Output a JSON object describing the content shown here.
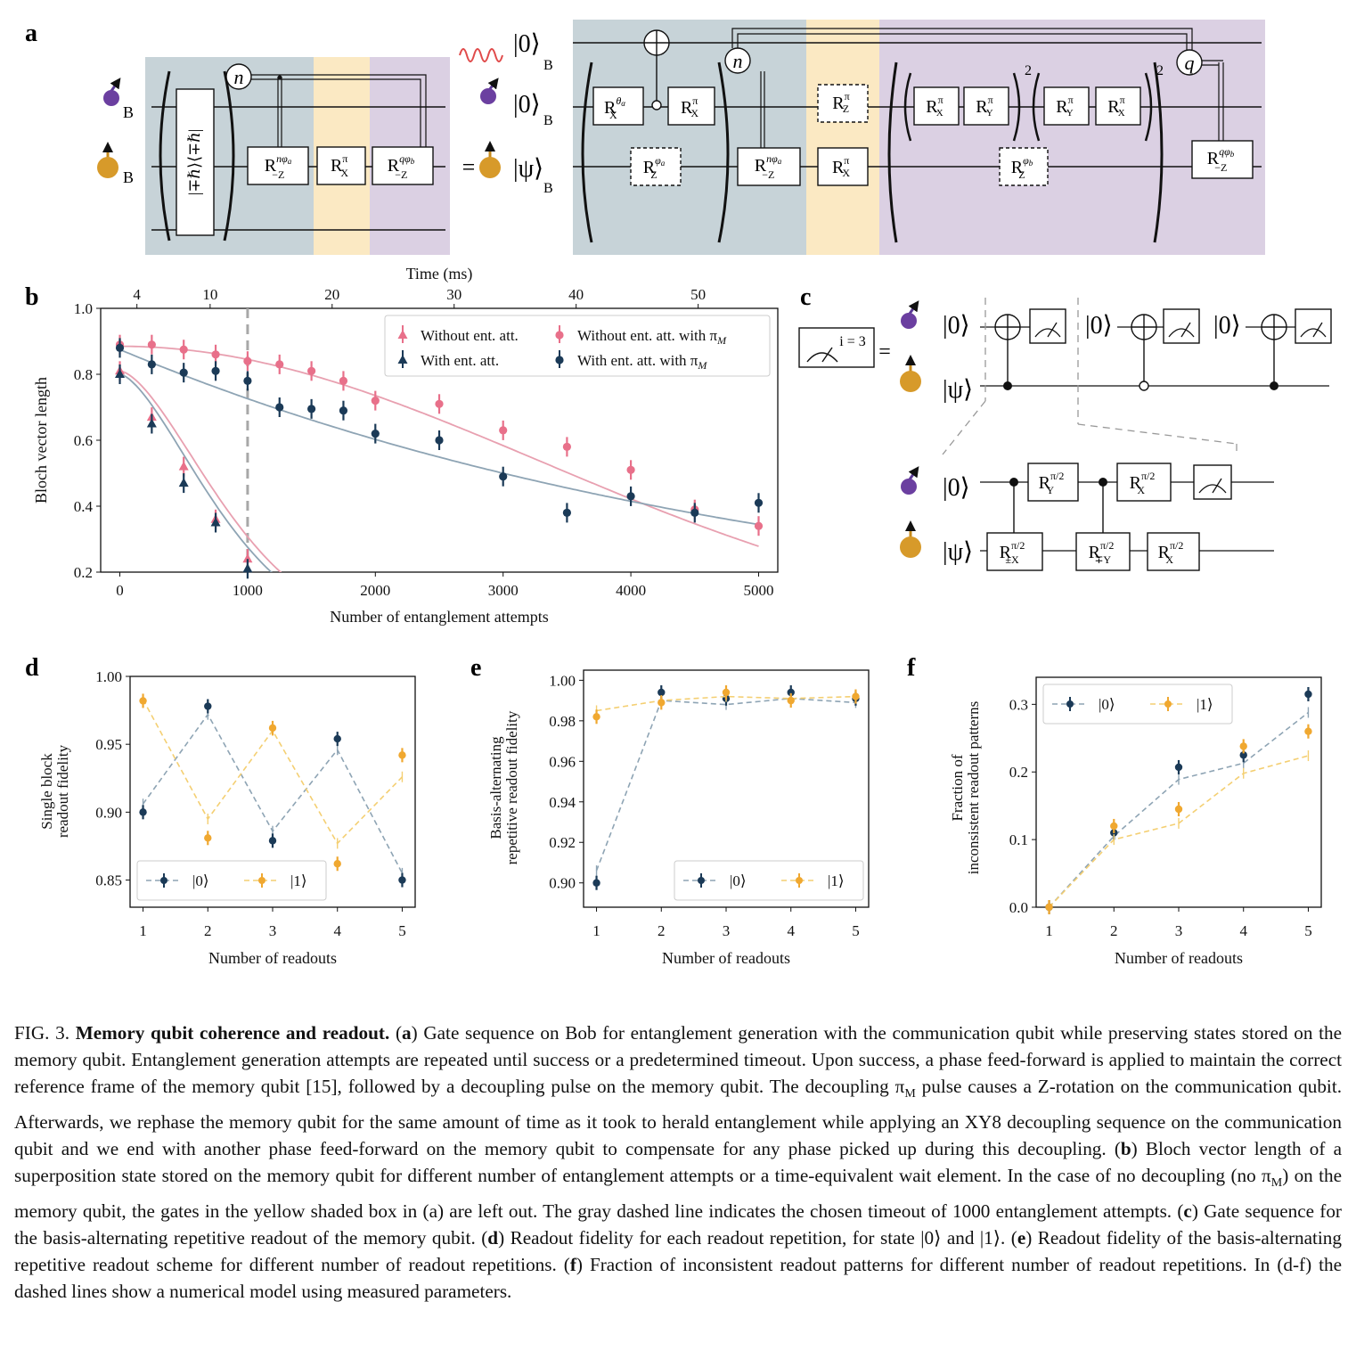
{
  "panels": {
    "a": "a",
    "b": "b",
    "c": "c",
    "d": "d",
    "e": "e",
    "f": "f"
  },
  "panel_a": {
    "qubit_label": "B",
    "ket_0": "|0⟩",
    "ket_psi": "|ψ⟩",
    "sub_B": "B",
    "equals": "=",
    "projector": "|∓ℏ⟩⟨∓ℏ|",
    "n": "n",
    "q": "q",
    "power": "2",
    "gates_left": [
      "R",
      "R",
      "R"
    ],
    "rx_sym": "R",
    "rz_sym": "R"
  },
  "panel_c": {
    "measure_label": "i = 3",
    "ket_0": "|0⟩",
    "ket_psi": "|ψ⟩",
    "equals": "="
  },
  "chart_data": [
    {
      "type": "scatter",
      "panel": "b",
      "xlabel": "Number of entanglement attempts",
      "ylabel": "Bloch vector length",
      "top_axis_label": "Time (ms)",
      "top_ticks": [
        4,
        10,
        20,
        30,
        40,
        50
      ],
      "xlim": [
        -150,
        5150
      ],
      "ylim": [
        0.2,
        1.0
      ],
      "xticks": [
        0,
        1000,
        2000,
        3000,
        4000,
        5000
      ],
      "yticks": [
        0.2,
        0.4,
        0.6,
        0.8,
        1.0
      ],
      "timeout_line_x": 1000,
      "legend": "top-right",
      "series": [
        {
          "name": "Without ent. att.",
          "color": "#e8708a",
          "marker": "triangle",
          "x": [
            0,
            250,
            500,
            750,
            1000
          ],
          "y": [
            0.81,
            0.67,
            0.52,
            0.36,
            0.24
          ]
        },
        {
          "name": "With ent. att.",
          "color": "#1b3a57",
          "marker": "triangle",
          "x": [
            0,
            250,
            500,
            750,
            1000
          ],
          "y": [
            0.8,
            0.65,
            0.47,
            0.35,
            0.21
          ]
        },
        {
          "name": "Without ent. att. with π_M",
          "color": "#e8708a",
          "marker": "circle",
          "x": [
            0,
            250,
            500,
            750,
            1000,
            1250,
            1500,
            1750,
            2000,
            2500,
            3000,
            3500,
            4000,
            4500,
            5000
          ],
          "y": [
            0.89,
            0.89,
            0.875,
            0.86,
            0.84,
            0.83,
            0.81,
            0.78,
            0.72,
            0.71,
            0.63,
            0.58,
            0.51,
            0.39,
            0.34
          ]
        },
        {
          "name": "With ent. att. with π_M",
          "color": "#1b3a57",
          "marker": "circle",
          "x": [
            0,
            250,
            500,
            750,
            1000,
            1250,
            1500,
            1750,
            2000,
            2500,
            3000,
            3500,
            4000,
            4500,
            5000
          ],
          "y": [
            0.88,
            0.83,
            0.805,
            0.81,
            0.78,
            0.7,
            0.695,
            0.69,
            0.62,
            0.6,
            0.49,
            0.38,
            0.43,
            0.38,
            0.41
          ]
        }
      ]
    },
    {
      "type": "line",
      "panel": "d",
      "xlabel": "Number of readouts",
      "ylabel": "Single block readout fidelity",
      "xticks": [
        1,
        2,
        3,
        4,
        5
      ],
      "ylim": [
        0.83,
        1.0
      ],
      "yticks": [
        0.85,
        0.9,
        0.95,
        1.0
      ],
      "legend": "bottom",
      "series": [
        {
          "name": "|0⟩",
          "color": "#1b3a57",
          "x": [
            1,
            2,
            3,
            4,
            5
          ],
          "data": [
            0.9,
            0.978,
            0.879,
            0.954,
            0.85
          ],
          "model": [
            0.906,
            0.972,
            0.886,
            0.946,
            0.855
          ]
        },
        {
          "name": "|1⟩",
          "color": "#f0a830",
          "x": [
            1,
            2,
            3,
            4,
            5
          ],
          "data": [
            0.982,
            0.881,
            0.962,
            0.862,
            0.942
          ],
          "model": [
            0.983,
            0.895,
            0.96,
            0.877,
            0.926
          ]
        }
      ]
    },
    {
      "type": "line",
      "panel": "e",
      "xlabel": "Number of readouts",
      "ylabel": "Basis-alternating repetitive readout fidelity",
      "xticks": [
        1,
        2,
        3,
        4,
        5
      ],
      "ylim": [
        0.888,
        1.005
      ],
      "yticks": [
        0.9,
        0.92,
        0.94,
        0.96,
        0.98,
        1.0
      ],
      "legend": "bottom-right",
      "series": [
        {
          "name": "|0⟩",
          "color": "#1b3a57",
          "x": [
            1,
            2,
            3,
            4,
            5
          ],
          "data": [
            0.9,
            0.994,
            0.991,
            0.994,
            0.991
          ],
          "model": [
            0.906,
            0.99,
            0.988,
            0.991,
            0.989
          ]
        },
        {
          "name": "|1⟩",
          "color": "#f0a830",
          "x": [
            1,
            2,
            3,
            4,
            5
          ],
          "data": [
            0.982,
            0.989,
            0.994,
            0.99,
            0.992
          ],
          "model": [
            0.985,
            0.99,
            0.992,
            0.991,
            0.992
          ]
        }
      ]
    },
    {
      "type": "line",
      "panel": "f",
      "xlabel": "Number of readouts",
      "ylabel": "Fraction of inconsistent readout patterns",
      "xticks": [
        1,
        2,
        3,
        4,
        5
      ],
      "ylim": [
        0.0,
        0.34
      ],
      "yticks": [
        0.0,
        0.1,
        0.2,
        0.3
      ],
      "legend": "top-left",
      "series": [
        {
          "name": "|0⟩",
          "color": "#1b3a57",
          "x": [
            1,
            2,
            3,
            4,
            5
          ],
          "data": [
            0.0,
            0.11,
            0.207,
            0.225,
            0.315
          ],
          "model": [
            0.0,
            0.105,
            0.189,
            0.213,
            0.288
          ]
        },
        {
          "name": "|1⟩",
          "color": "#f0a830",
          "x": [
            1,
            2,
            3,
            4,
            5
          ],
          "data": [
            0.0,
            0.12,
            0.145,
            0.238,
            0.26
          ],
          "model": [
            0.0,
            0.1,
            0.124,
            0.198,
            0.224
          ]
        }
      ]
    }
  ],
  "caption": {
    "fig": "FIG. 3.",
    "title": "Memory qubit coherence and readout.",
    "text": [
      " (",
      "a",
      ") Gate sequence on Bob for entanglement generation with the communication qubit while preserving states stored on the memory qubit. Entanglement generation attempts are repeated until success or a predetermined timeout. Upon success, a phase feed-forward is applied to maintain the correct reference frame of the memory qubit [15], followed by a decoupling pulse on the memory qubit. The decoupling π",
      "M",
      " pulse causes a Z-rotation on the communication qubit. Afterwards, we rephase the memory qubit for the same amount of time as it took to herald entanglement while applying an XY8 decoupling sequence on the communication qubit and we end with another phase feed-forward on the memory qubit to compensate for any phase picked up during this decoupling. (",
      "b",
      ") Bloch vector length of a superposition state stored on the memory qubit for different number of entanglement attempts or a time-equivalent wait element. In the case of no decoupling (no π",
      "M",
      ") on the memory qubit, the gates in the yellow shaded box in (a) are left out. The gray dashed line indicates the chosen timeout of 1000 entanglement attempts. (",
      "c",
      ") Gate sequence for the basis-alternating repetitive readout of the memory qubit. (",
      "d",
      ") Readout fidelity for each readout repetition, for state |0⟩ and |1⟩. (",
      "e",
      ") Readout fidelity of the basis-alternating repetitive readout scheme for different number of readout repetitions. (",
      "f",
      ") Fraction of inconsistent readout patterns for different number of readout repetitions. In (d-f) the dashed lines show a numerical model using measured parameters."
    ]
  }
}
